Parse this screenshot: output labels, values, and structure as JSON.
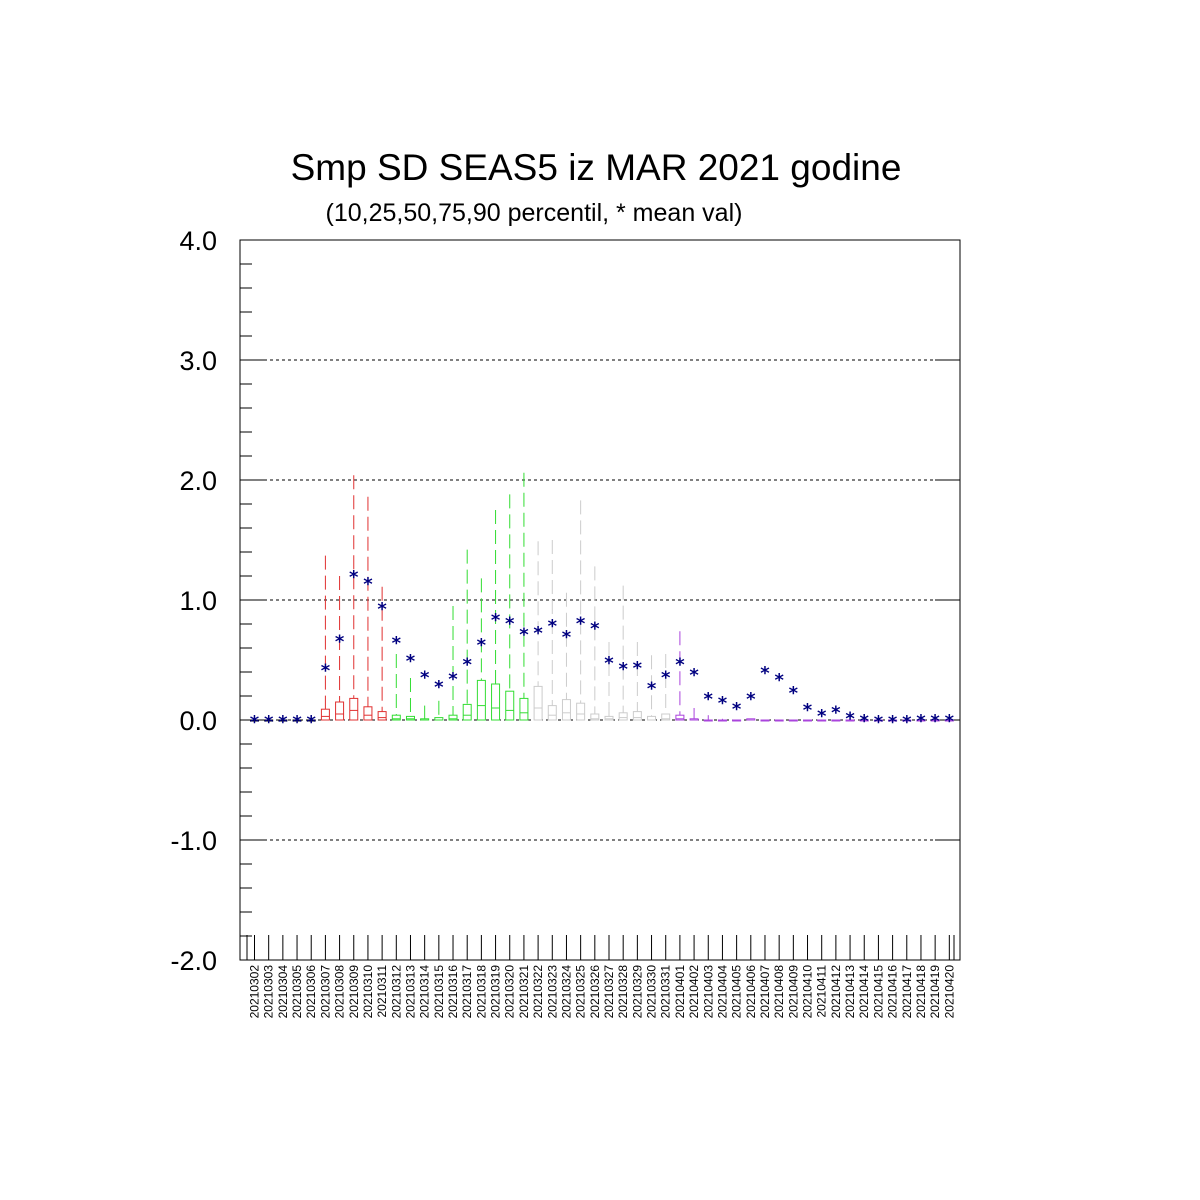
{
  "chart_data": {
    "type": "box",
    "title": "Smp SD SEAS5 iz MAR 2021 godine",
    "subtitle": "(10,25,50,75,90 percentil, * mean val)",
    "xlabel": "",
    "ylabel": "",
    "ylim": [
      -2.0,
      4.0
    ],
    "yticks": [
      "-2.0",
      "-1.0",
      "0.0",
      "1.0",
      "2.0",
      "3.0",
      "4.0"
    ],
    "grid": "horizontal dashed",
    "categories": [
      "20210302",
      "20210303",
      "20210304",
      "20210305",
      "20210306",
      "20210307",
      "20210308",
      "20210309",
      "20210310",
      "20210311",
      "20210312",
      "20210313",
      "20210314",
      "20210315",
      "20210316",
      "20210317",
      "20210318",
      "20210319",
      "20210320",
      "20210321",
      "20210322",
      "20210323",
      "20210324",
      "20210325",
      "20210326",
      "20210327",
      "20210328",
      "20210329",
      "20210330",
      "20210331",
      "20210401",
      "20210402",
      "20210403",
      "20210404",
      "20210405",
      "20210406",
      "20210407",
      "20210408",
      "20210409",
      "20210410",
      "20210411",
      "20210412",
      "20210413",
      "20210414",
      "20210415",
      "20210416",
      "20210417",
      "20210418",
      "20210419",
      "20210420"
    ],
    "series": [
      {
        "name": "",
        "color": "#000080",
        "marker": "*",
        "values": [
          0.0,
          0.0,
          0.0,
          0.0,
          0.0,
          0.43,
          0.67,
          1.21,
          1.15,
          0.94,
          0.66,
          0.51,
          0.37,
          0.29,
          0.36,
          0.48,
          0.64,
          0.85,
          0.82,
          0.73,
          0.74,
          0.8,
          0.71,
          0.82,
          0.78,
          0.49,
          0.44,
          0.45,
          0.28,
          0.37,
          0.48,
          0.39,
          0.19,
          0.16,
          0.11,
          0.19,
          0.41,
          0.35,
          0.24,
          0.1,
          0.05,
          0.08,
          0.03,
          0.01,
          0.0,
          0.0,
          0.0,
          0.01,
          0.01,
          0.01
        ]
      },
      {
        "name": "",
        "role": "p10",
        "values": [
          0,
          0,
          0,
          0,
          0,
          0,
          0,
          0,
          0,
          0,
          0,
          0,
          0,
          0,
          0,
          0,
          0,
          0,
          0,
          0,
          0,
          0,
          0,
          0,
          0,
          0,
          0,
          0,
          0,
          0,
          0,
          0,
          0,
          0,
          0,
          0,
          0,
          0,
          0,
          0,
          0,
          0,
          0,
          0,
          0,
          0,
          0,
          0,
          0,
          0
        ]
      },
      {
        "name": "",
        "role": "p25",
        "values": [
          0,
          0,
          0,
          0,
          0,
          0,
          0,
          0,
          0,
          0,
          0,
          0,
          0,
          0,
          0,
          0,
          0,
          0,
          0,
          0,
          0,
          0,
          0,
          0,
          0,
          0,
          0,
          0,
          0,
          0,
          0,
          0,
          0,
          0,
          0,
          0,
          0,
          0,
          0,
          0,
          0,
          0,
          0,
          0,
          0,
          0,
          0,
          0,
          0,
          0
        ]
      },
      {
        "name": "",
        "role": "p50",
        "values": [
          0,
          0,
          0,
          0,
          0,
          0.03,
          0.05,
          0.08,
          0.04,
          0.02,
          0.01,
          0.01,
          0,
          0,
          0.01,
          0.04,
          0.12,
          0.1,
          0.08,
          0.06,
          0.1,
          0.04,
          0.06,
          0.05,
          0.01,
          0.01,
          0.02,
          0.02,
          0,
          0.01,
          0.01,
          0,
          0,
          0,
          0,
          0,
          0,
          0,
          0,
          0,
          0,
          0,
          0,
          0,
          0,
          0,
          0,
          0,
          0,
          0
        ]
      },
      {
        "name": "",
        "role": "p75",
        "values": [
          0,
          0,
          0,
          0,
          0,
          0.09,
          0.15,
          0.18,
          0.11,
          0.07,
          0.04,
          0.03,
          0.01,
          0.02,
          0.04,
          0.13,
          0.33,
          0.3,
          0.24,
          0.18,
          0.28,
          0.12,
          0.17,
          0.14,
          0.05,
          0.03,
          0.06,
          0.07,
          0.03,
          0.05,
          0.04,
          0.01,
          0,
          0,
          0,
          0.01,
          0,
          0,
          0,
          0,
          0,
          0,
          0,
          0,
          0,
          0,
          0,
          0,
          0,
          0
        ]
      },
      {
        "name": "",
        "role": "p90",
        "values": [
          0,
          0,
          0,
          0,
          0,
          1.37,
          1.2,
          2.04,
          1.86,
          1.11,
          0.55,
          0.35,
          0.12,
          0.16,
          0.95,
          1.42,
          1.18,
          1.75,
          1.88,
          2.06,
          1.49,
          1.5,
          1.06,
          1.83,
          1.28,
          0.65,
          1.12,
          0.65,
          0.54,
          0.55,
          0.74,
          0.1,
          0.04,
          0.01,
          0,
          0,
          0,
          0,
          0,
          0,
          0,
          0,
          0,
          0,
          0,
          0,
          0,
          0,
          0,
          0
        ]
      }
    ],
    "colors": {
      "mean": "#000080",
      "groups": [
        "#000000",
        "#e03030",
        "#33dd33",
        "#cccccc",
        "#aa44dd"
      ],
      "group_breaks": [
        0,
        5,
        10,
        20,
        30,
        40,
        50
      ]
    }
  }
}
